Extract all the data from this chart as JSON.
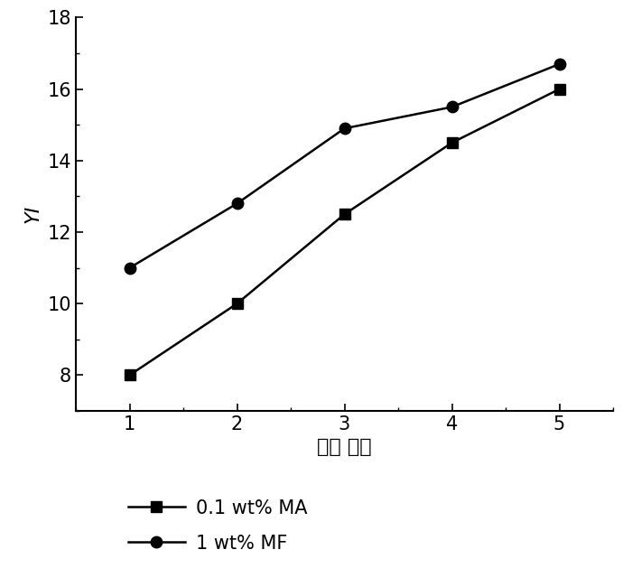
{
  "x": [
    1,
    2,
    3,
    4,
    5
  ],
  "series1_y": [
    8.0,
    10.0,
    12.5,
    14.5,
    16.0
  ],
  "series2_y": [
    11.0,
    12.8,
    14.9,
    15.5,
    16.7
  ],
  "series1_label": "0.1 wt% MA",
  "series2_label": "1 wt% MF",
  "series1_marker": "s",
  "series2_marker": "o",
  "color": "#000000",
  "xlabel": "加工 次数",
  "ylabel": "YI",
  "xlim": [
    0.5,
    5.5
  ],
  "ylim": [
    7,
    18
  ],
  "yticks": [
    8,
    10,
    12,
    14,
    16,
    18
  ],
  "xticks": [
    1,
    2,
    3,
    4,
    5
  ],
  "background_color": "#ffffff",
  "marker_size": 9,
  "line_width": 1.8,
  "axis_fontsize": 16,
  "tick_fontsize": 15,
  "legend_fontsize": 15
}
